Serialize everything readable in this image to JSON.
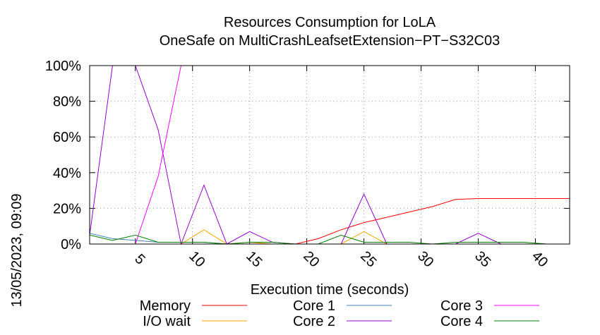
{
  "chart_data": {
    "type": "line",
    "title": "Resources Consumption for LoLA",
    "subtitle": "OneSafe on MultiCrashLeafsetExtension−PT−S32C03",
    "xlabel": "Execution time (seconds)",
    "ylabel": "",
    "side_label": "13/05/2023, 09:09",
    "xlim": [
      1,
      43
    ],
    "ylim": [
      0,
      100
    ],
    "x_ticks": [
      5,
      10,
      15,
      20,
      25,
      30,
      35,
      40
    ],
    "y_ticks": [
      0,
      20,
      40,
      60,
      80,
      100
    ],
    "y_tick_labels": [
      "0%",
      "20%",
      "40%",
      "60%",
      "80%",
      "100%"
    ],
    "grid": true,
    "legend_position": "bottom",
    "series": [
      {
        "name": "Memory",
        "color": "#ff0000",
        "x": [
          1,
          3,
          5,
          7,
          9,
          11,
          13,
          15,
          17,
          19,
          21,
          23,
          25,
          27,
          29,
          31,
          33,
          35,
          37,
          39,
          41,
          43
        ],
        "y": [
          0,
          0,
          0,
          0,
          0,
          0,
          0,
          0,
          0,
          0,
          3,
          8,
          12,
          15,
          18,
          21,
          25,
          25.5,
          25.5,
          25.5,
          25.5,
          25.5
        ]
      },
      {
        "name": "I/O wait",
        "color": "#ffa500",
        "x": [
          1,
          3,
          5,
          7,
          9,
          11,
          13,
          15,
          17,
          19,
          21,
          23,
          25,
          27,
          29,
          31,
          33,
          35,
          37,
          39,
          41,
          43
        ],
        "y": [
          0,
          0,
          0,
          0,
          0,
          8,
          0,
          1,
          0,
          0,
          0,
          0,
          7,
          0,
          0,
          0,
          0,
          0,
          0,
          0,
          0,
          0
        ]
      },
      {
        "name": "Core 1",
        "color": "#4682b4",
        "x": [
          1,
          3,
          5,
          7,
          9,
          11,
          13,
          15,
          17,
          19,
          21,
          23,
          25,
          27,
          29,
          31,
          33,
          35,
          37,
          39,
          41,
          43
        ],
        "y": [
          6,
          3,
          2,
          1,
          1,
          1,
          0,
          0,
          0,
          0,
          0,
          0,
          0,
          0,
          0,
          0,
          0,
          0,
          0,
          0,
          0,
          0
        ]
      },
      {
        "name": "Core 2",
        "color": "#9400d3",
        "x": [
          1,
          3,
          5,
          7,
          9,
          11,
          13,
          15,
          17,
          19,
          21,
          23,
          25,
          27,
          29,
          31,
          33,
          35,
          37,
          39,
          41,
          43
        ],
        "y": [
          5,
          100,
          100,
          64,
          0,
          33,
          0,
          7,
          1,
          0,
          0,
          0,
          28,
          0,
          0,
          0,
          0,
          6,
          0,
          0,
          0,
          0
        ]
      },
      {
        "name": "Core 3",
        "color": "#ff00ff",
        "x": [
          1,
          3,
          5,
          7,
          9,
          11,
          13,
          15,
          17,
          19,
          21,
          23,
          25,
          27,
          29,
          31,
          33,
          35,
          37,
          39,
          41,
          43
        ],
        "y": [
          0,
          0,
          0,
          38,
          100,
          100,
          100,
          100,
          100,
          100,
          100,
          100,
          100,
          100,
          100,
          100,
          100,
          100,
          100,
          100,
          100,
          100
        ]
      },
      {
        "name": "Core 4",
        "color": "#008000",
        "x": [
          1,
          3,
          5,
          7,
          9,
          11,
          13,
          15,
          17,
          19,
          21,
          23,
          25,
          27,
          29,
          31,
          33,
          35,
          37,
          39,
          41,
          43
        ],
        "y": [
          5,
          2,
          5,
          1,
          1,
          1,
          0,
          1,
          1,
          0,
          0,
          5,
          1,
          1,
          1,
          0,
          1,
          1,
          1,
          1,
          0,
          0
        ]
      }
    ]
  }
}
